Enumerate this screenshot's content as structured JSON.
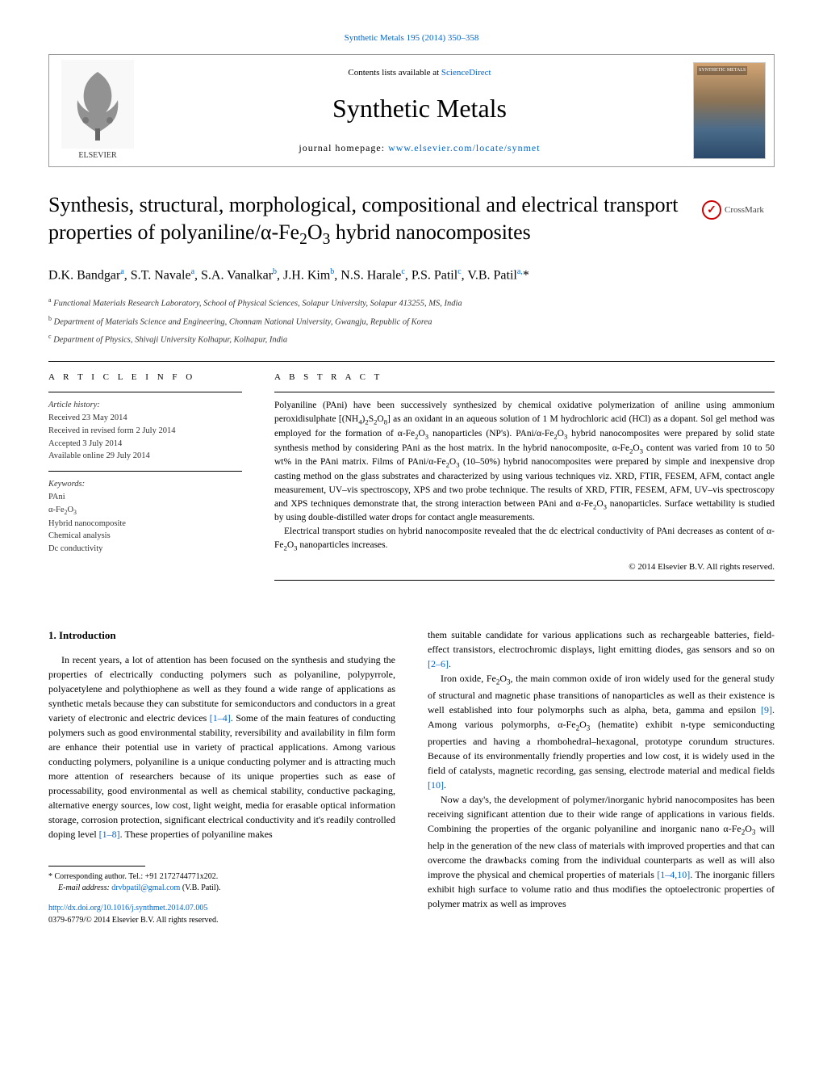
{
  "topLink": "Synthetic Metals 195 (2014) 350–358",
  "header": {
    "contentsLine_prefix": "Contents lists available at ",
    "contentsLine_link": "ScienceDirect",
    "journalTitle": "Synthetic Metals",
    "homepage_prefix": "journal homepage: ",
    "homepage_link": "www.elsevier.com/locate/synmet",
    "elsevierLabel": "ELSEVIER",
    "coverLabel": "SYNTHETIC METALS"
  },
  "article": {
    "title_html": "Synthesis, structural, morphological, compositional and electrical transport properties of polyaniline/α-Fe<sub>2</sub>O<sub>3</sub> hybrid nanocomposites",
    "crossmark": "CrossMark",
    "authors_html": "D.K. Bandgar<sup>a</sup>, S.T. Navale<sup>a</sup>, S.A. Vanalkar<sup>b</sup>, J.H. Kim<sup>b</sup>, N.S. Harale<sup>c</sup>, P.S. Patil<sup>c</sup>, V.B. Patil<sup>a,</sup>*",
    "affiliations": [
      "Functional Materials Research Laboratory, School of Physical Sciences, Solapur University, Solapur 413255, MS, India",
      "Department of Materials Science and Engineering, Chonnam National University, Gwangju, Republic of Korea",
      "Department of Physics, Shivaji University Kolhapur, Kolhapur, India"
    ],
    "affMarks": [
      "a",
      "b",
      "c"
    ]
  },
  "info": {
    "heading": "A R T I C L E   I N F O",
    "historyLabel": "Article history:",
    "history": [
      "Received 23 May 2014",
      "Received in revised form 2 July 2014",
      "Accepted 3 July 2014",
      "Available online 29 July 2014"
    ],
    "keywordsLabel": "Keywords:",
    "keywords_html": [
      "PAni",
      "α-Fe<sub>2</sub>O<sub>3</sub>",
      "Hybrid nanocomposite",
      "Chemical analysis",
      "Dc conductivity"
    ]
  },
  "abstract": {
    "heading": "A B S T R A C T",
    "paragraphs_html": [
      "Polyaniline (PAni) have been successively synthesized by chemical oxidative polymerization of aniline using ammonium peroxidisulphate [(NH<sub>4</sub>)<sub>2</sub>S<sub>2</sub>O<sub>8</sub>] as an oxidant in an aqueous solution of 1 M hydrochloric acid (HCl) as a dopant. Sol gel method was employed for the formation of α-Fe<sub>2</sub>O<sub>3</sub> nanoparticles (NP's). PAni/α-Fe<sub>2</sub>O<sub>3</sub> hybrid nanocomposites were prepared by solid state synthesis method by considering PAni as the host matrix. In the hybrid nanocomposite, α-Fe<sub>2</sub>O<sub>3</sub> content was varied from 10 to 50 wt% in the PAni matrix. Films of PAni/α-Fe<sub>2</sub>O<sub>3</sub> (10–50%) hybrid nanocomposites were prepared by simple and inexpensive drop casting method on the glass substrates and characterized by using various techniques viz. XRD, FTIR, FESEM, AFM, contact angle measurement, UV–vis spectroscopy, XPS and two probe technique. The results of XRD, FTIR, FESEM, AFM, UV–vis spectroscopy and XPS techniques demonstrate that, the strong interaction between PAni and α-Fe<sub>2</sub>O<sub>3</sub> nanoparticles. Surface wettability is studied by using double-distilled water drops for contact angle measurements.",
      "Electrical transport studies on hybrid nanocomposite revealed that the dc electrical conductivity of PAni decreases as content of α-Fe<sub>2</sub>O<sub>3</sub> nanoparticles increases."
    ],
    "copyright": "© 2014 Elsevier B.V. All rights reserved."
  },
  "body": {
    "section1_heading": "1.  Introduction",
    "col1_paragraphs_html": [
      "In recent years, a lot of attention has been focused on the synthesis and studying the properties of electrically conducting polymers such as polyaniline, polypyrrole, polyacetylene and polythiophene as well as they found a wide range of applications as synthetic metals because they can substitute for semiconductors and conductors in a great variety of electronic and electric devices <a class=\"ref-link\" href=\"#\">[1–4]</a>. Some of the main features of conducting polymers such as good environmental stability, reversibility and availability in film form are enhance their potential use in variety of practical applications. Among various conducting polymers, polyaniline is a unique conducting polymer and is attracting much more attention of researchers because of its unique properties such as ease of processability, good environmental as well as chemical stability, conductive packaging, alternative energy sources, low cost, light weight, media for erasable optical information storage, corrosion protection, significant electrical conductivity and it's readily controlled doping level <a class=\"ref-link\" href=\"#\">[1–8]</a>. These properties of polyaniline makes"
    ],
    "col2_paragraphs_html": [
      "them suitable candidate for various applications such as rechargeable batteries, field-effect transistors, electrochromic displays, light emitting diodes, gas sensors and so on <a class=\"ref-link\" href=\"#\">[2–6]</a>.",
      "Iron oxide, Fe<sub>2</sub>O<sub>3</sub>, the main common oxide of iron widely used for the general study of structural and magnetic phase transitions of nanoparticles as well as their existence is well established into four polymorphs such as alpha, beta, gamma and epsilon <a class=\"ref-link\" href=\"#\">[9]</a>. Among various polymorphs, α-Fe<sub>2</sub>O<sub>3</sub> (hematite) exhibit n-type semiconducting properties and having a rhombohedral–hexagonal, prototype corundum structures. Because of its environmentally friendly properties and low cost, it is widely used in the field of catalysts, magnetic recording, gas sensing, electrode material and medical fields <a class=\"ref-link\" href=\"#\">[10]</a>.",
      "Now a day's, the development of polymer/inorganic hybrid nanocomposites has been receiving significant attention due to their wide range of applications in various fields. Combining the properties of the organic polyaniline and inorganic nano α-Fe<sub>2</sub>O<sub>3</sub> will help in the generation of the new class of materials with improved properties and that can overcome the drawbacks coming from the individual counterparts as well as will also improve the physical and chemical properties of materials <a class=\"ref-link\" href=\"#\">[1–4,10]</a>. The inorganic fillers exhibit high surface to volume ratio and thus modifies the optoelectronic properties of polymer matrix as well as improves"
    ]
  },
  "footnote": {
    "corr_prefix": "* Corresponding author. Tel.: +91 2172744771x202.",
    "email_label": "E-mail address: ",
    "email": "drvbpatil@gmal.com",
    "email_suffix": " (V.B. Patil).",
    "doi_link": "http://dx.doi.org/10.1016/j.synthmet.2014.07.005",
    "doi_suffix": "0379-6779/© 2014 Elsevier B.V. All rights reserved."
  },
  "colors": {
    "link": "#0066cc",
    "text": "#000000",
    "rule": "#000000"
  }
}
